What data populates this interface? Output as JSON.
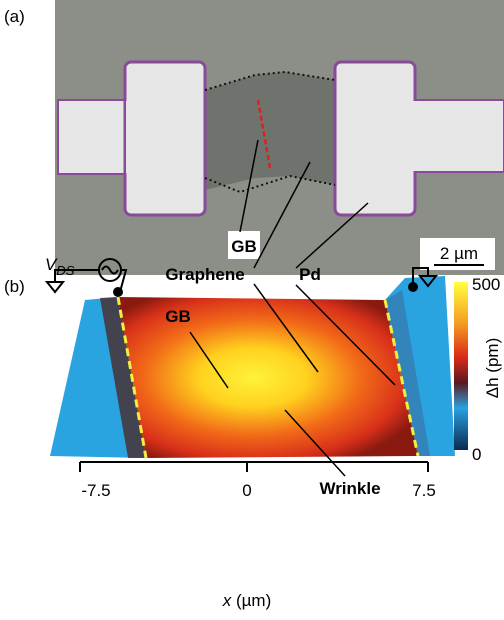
{
  "panel_a": {
    "label": "(a)",
    "gb_label": "GB",
    "scale_bar": "2 µm"
  },
  "panel_b": {
    "label": "(b)",
    "source": {
      "symbol": "V",
      "subscript": "DS"
    },
    "annotations": {
      "graphene": "Graphene",
      "pd": "Pd",
      "gb": "GB",
      "wrinkle": "Wrinkle"
    },
    "colorbar": {
      "max": "500",
      "min": "0",
      "label_symbol": "Δh",
      "label_unit": " (pm)"
    },
    "x_axis": {
      "ticks": [
        "-7.5",
        "0",
        "7.5"
      ],
      "label_symbol": "x",
      "label_unit": " (µm)"
    }
  }
}
